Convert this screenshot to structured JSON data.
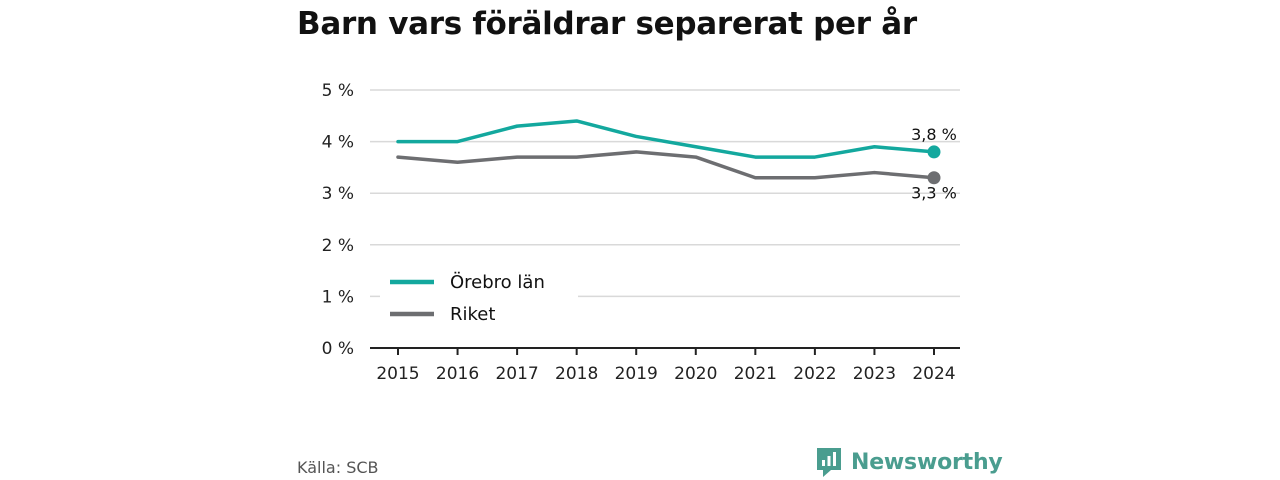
{
  "header": {
    "title": "Barn vars föräldrar separerat per år"
  },
  "footer": {
    "source": "Källa: SCB",
    "brand": "Newsworthy"
  },
  "colors": {
    "orebro": "#13a89e",
    "riket": "#6d6e71",
    "grid": "#d9d9d9",
    "axis": "#222222",
    "brand": "#4a9d8f"
  },
  "chart_data": {
    "type": "line",
    "title": "Barn vars föräldrar separerat per år",
    "x": [
      "2015",
      "2016",
      "2017",
      "2018",
      "2019",
      "2020",
      "2021",
      "2022",
      "2023",
      "2024"
    ],
    "y_ticks": [
      "0 %",
      "1 %",
      "2 %",
      "3 %",
      "4 %",
      "5 %"
    ],
    "ylim": [
      0,
      5
    ],
    "grid": true,
    "legend_placement": "bottom-left",
    "series": [
      {
        "name": "Örebro län",
        "color": "#13a89e",
        "values": [
          4.0,
          4.0,
          4.3,
          4.4,
          4.1,
          3.9,
          3.7,
          3.7,
          3.9,
          3.8
        ],
        "end_label": "3,8 %"
      },
      {
        "name": "Riket",
        "color": "#6d6e71",
        "values": [
          3.7,
          3.6,
          3.7,
          3.7,
          3.8,
          3.7,
          3.3,
          3.3,
          3.4,
          3.3
        ],
        "end_label": "3,3 %"
      }
    ]
  }
}
